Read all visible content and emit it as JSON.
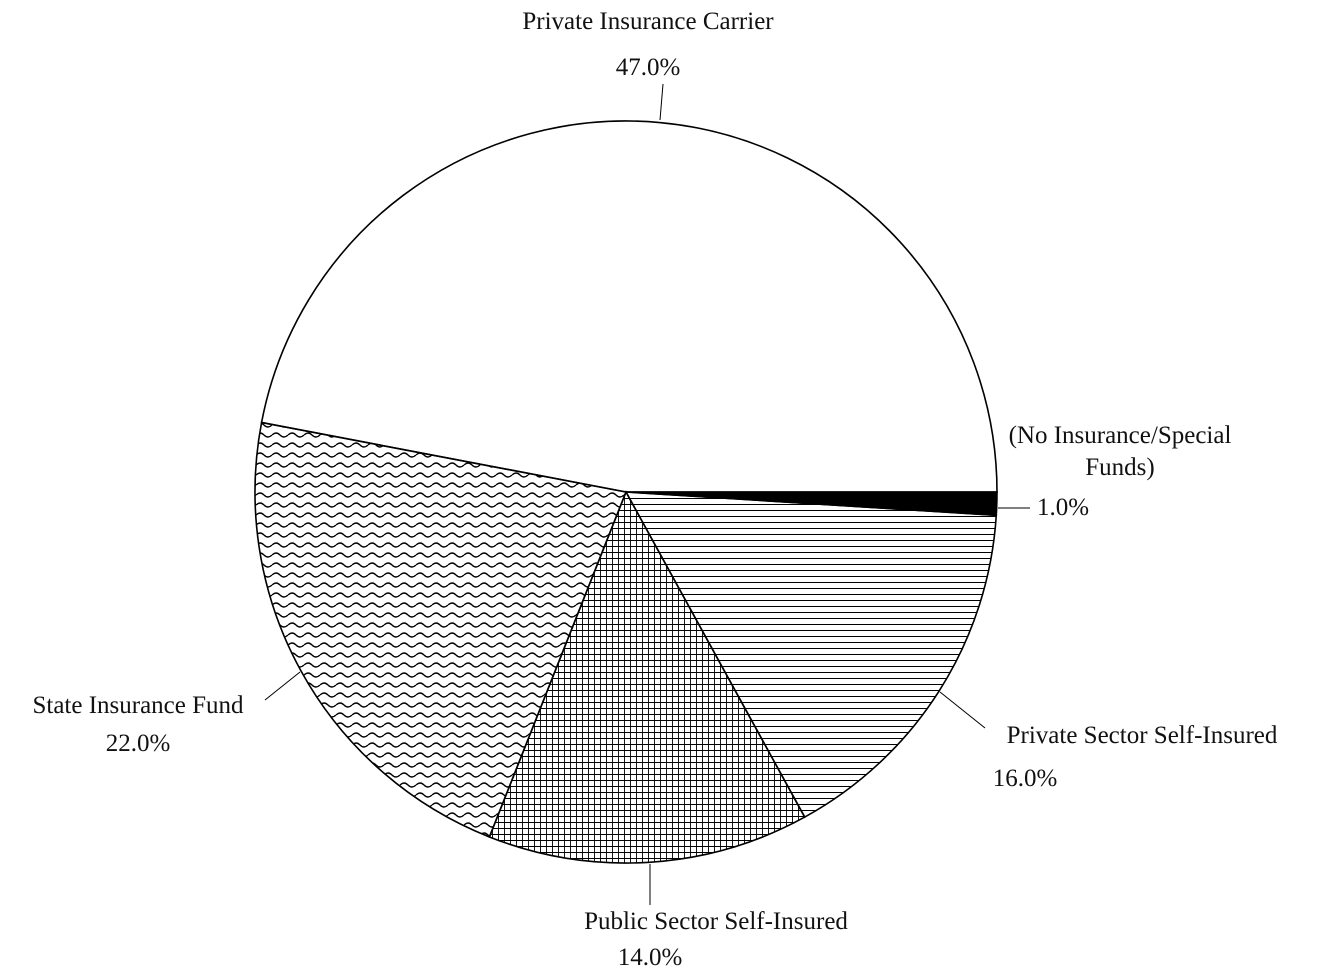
{
  "chart_data": {
    "type": "pie",
    "categories": [
      "Private Insurance Carrier",
      "State Insurance Fund",
      "Public Sector Self-Insured",
      "Private Sector Self-Insured",
      "(No Insurance/Special Funds)"
    ],
    "values": [
      47,
      22,
      14,
      16,
      1
    ],
    "value_labels": [
      "47.0%",
      "22.0%",
      "14.0%",
      "16.0%",
      "1.0%"
    ],
    "patterns": [
      "none",
      "wave",
      "grid",
      "hlines",
      "solid"
    ],
    "color": "#000000"
  }
}
